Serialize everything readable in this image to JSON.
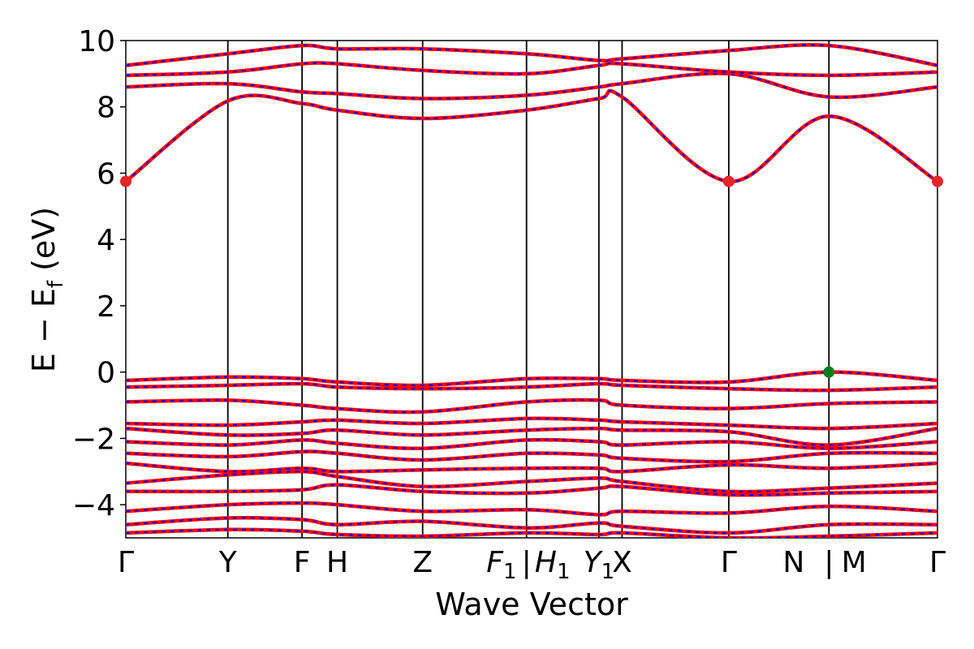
{
  "chart_data": {
    "type": "line",
    "title": "",
    "xlabel": "Wave Vector",
    "ylabel": "E − E",
    "ylabel_sub": "f",
    "ylabel_unit": " (eV)",
    "ylim": [
      -5,
      10
    ],
    "yticks": [
      -4,
      -2,
      0,
      2,
      4,
      6,
      8,
      10
    ],
    "ytick_labels": [
      "−4",
      "−2",
      "0",
      "2",
      "4",
      "6",
      "8",
      "10"
    ],
    "xlim": [
      0,
      8.75
    ],
    "kpoints": [
      {
        "label": "Γ",
        "x": 0,
        "line": false
      },
      {
        "label": "Y",
        "x": 1.1,
        "line": true
      },
      {
        "label": "F",
        "x": 1.9,
        "line": true
      },
      {
        "label": "H",
        "x": 2.28,
        "line": true
      },
      {
        "label": "Z",
        "x": 3.2,
        "line": true
      },
      {
        "label": "F",
        "sub": "1",
        "italic": true,
        "x": 4.05,
        "line": false
      },
      {
        "label": "|",
        "x": 4.32,
        "line": true
      },
      {
        "label": "H",
        "sub": "1",
        "italic": true,
        "x": 4.6,
        "line": false
      },
      {
        "label": "Y",
        "sub": "1",
        "italic": true,
        "x": 5.1,
        "line": true
      },
      {
        "label": "X",
        "x": 5.35,
        "line": true
      },
      {
        "label": "Γ",
        "x": 6.5,
        "line": true
      },
      {
        "label": "N",
        "x": 7.2,
        "line": false
      },
      {
        "label": "|",
        "x": 7.58,
        "line": true
      },
      {
        "label": "M",
        "x": 7.85,
        "line": false
      },
      {
        "label": "Γ",
        "x": 8.75,
        "line": false
      }
    ],
    "series": [
      {
        "style": "red-solid",
        "x": [
          0,
          1.1,
          1.9,
          2.28,
          3.2,
          4.32,
          5.1,
          5.35,
          6.5,
          7.58,
          8.75
        ],
        "values": [
          5.75,
          8.18,
          8.1,
          7.9,
          7.65,
          7.9,
          8.25,
          8.3,
          5.75,
          7.72,
          5.75
        ]
      },
      {
        "style": "red-solid",
        "x": [
          0,
          1.1,
          1.9,
          2.28,
          3.2,
          4.32,
          5.1,
          5.35,
          6.5,
          7.58,
          8.75
        ],
        "values": [
          8.6,
          8.7,
          8.45,
          8.4,
          8.25,
          8.35,
          8.6,
          8.7,
          9.0,
          8.3,
          8.6
        ]
      },
      {
        "style": "red-solid",
        "x": [
          0,
          1.1,
          1.9,
          2.28,
          3.2,
          4.32,
          5.1,
          5.35,
          6.5,
          7.58,
          8.75
        ],
        "values": [
          8.95,
          9.05,
          9.3,
          9.3,
          9.1,
          9.0,
          9.25,
          9.3,
          9.05,
          8.95,
          9.05
        ]
      },
      {
        "style": "red-solid",
        "x": [
          0,
          1.1,
          1.9,
          2.28,
          3.2,
          4.32,
          5.1,
          5.35,
          6.5,
          7.58,
          8.75
        ],
        "values": [
          9.25,
          9.6,
          9.85,
          9.75,
          9.75,
          9.6,
          9.4,
          9.45,
          9.7,
          9.85,
          9.25
        ]
      },
      {
        "style": "red-solid",
        "x": [
          0,
          1.1,
          1.9,
          2.28,
          3.2,
          4.32,
          5.1,
          5.35,
          6.5,
          7.58,
          8.75
        ],
        "values": [
          -0.25,
          -0.15,
          -0.2,
          -0.3,
          -0.4,
          -0.2,
          -0.2,
          -0.25,
          -0.3,
          0.0,
          -0.25
        ]
      },
      {
        "style": "red-solid",
        "x": [
          0,
          1.1,
          1.9,
          2.28,
          3.2,
          4.32,
          5.1,
          5.35,
          6.5,
          7.58,
          8.75
        ],
        "values": [
          -0.45,
          -0.4,
          -0.35,
          -0.45,
          -0.5,
          -0.45,
          -0.35,
          -0.4,
          -0.5,
          -0.55,
          -0.45
        ]
      },
      {
        "style": "red-solid",
        "x": [
          0,
          1.1,
          1.9,
          2.28,
          3.2,
          4.32,
          5.1,
          5.35,
          6.5,
          7.58,
          8.75
        ],
        "values": [
          -0.9,
          -0.85,
          -1.0,
          -1.1,
          -1.2,
          -0.9,
          -0.85,
          -1.0,
          -1.1,
          -0.95,
          -0.9
        ]
      },
      {
        "style": "red-solid",
        "x": [
          0,
          1.1,
          1.9,
          2.28,
          3.2,
          4.32,
          5.1,
          5.35,
          6.5,
          7.58,
          8.75
        ],
        "values": [
          -1.55,
          -1.6,
          -1.5,
          -1.45,
          -1.55,
          -1.4,
          -1.45,
          -1.5,
          -1.6,
          -1.7,
          -1.55
        ]
      },
      {
        "style": "red-solid",
        "x": [
          0,
          1.1,
          1.9,
          2.28,
          3.2,
          4.32,
          5.1,
          5.35,
          6.5,
          7.58,
          8.75
        ],
        "values": [
          -1.7,
          -1.9,
          -1.85,
          -1.75,
          -1.9,
          -1.75,
          -1.7,
          -1.75,
          -1.8,
          -2.2,
          -1.7
        ]
      },
      {
        "style": "red-solid",
        "x": [
          0,
          1.1,
          1.9,
          2.28,
          3.2,
          4.32,
          5.1,
          5.35,
          6.5,
          7.58,
          8.75
        ],
        "values": [
          -2.1,
          -2.2,
          -2.05,
          -2.15,
          -2.3,
          -2.05,
          -2.1,
          -2.2,
          -2.1,
          -2.3,
          -2.1
        ]
      },
      {
        "style": "red-solid",
        "x": [
          0,
          1.1,
          1.9,
          2.28,
          3.2,
          4.32,
          5.1,
          5.35,
          6.5,
          7.58,
          8.75
        ],
        "values": [
          -2.45,
          -2.55,
          -2.4,
          -2.45,
          -2.65,
          -2.45,
          -2.5,
          -2.6,
          -2.7,
          -2.45,
          -2.45
        ]
      },
      {
        "style": "red-solid",
        "x": [
          0,
          1.1,
          1.9,
          2.28,
          3.2,
          4.32,
          5.1,
          5.35,
          6.5,
          7.58,
          8.75
        ],
        "values": [
          -2.75,
          -3.0,
          -2.9,
          -3.0,
          -2.95,
          -2.9,
          -2.9,
          -3.0,
          -2.8,
          -2.9,
          -2.75
        ]
      },
      {
        "style": "red-solid",
        "x": [
          0,
          1.1,
          1.9,
          2.28,
          3.2,
          4.32,
          5.1,
          5.35,
          6.5,
          7.58,
          8.75
        ],
        "values": [
          -3.35,
          -3.1,
          -3.0,
          -3.15,
          -3.45,
          -3.3,
          -3.2,
          -3.3,
          -3.6,
          -3.5,
          -3.35
        ]
      },
      {
        "style": "red-solid",
        "x": [
          0,
          1.1,
          1.9,
          2.28,
          3.2,
          4.32,
          5.1,
          5.35,
          6.5,
          7.58,
          8.75
        ],
        "values": [
          -3.6,
          -3.6,
          -3.55,
          -3.4,
          -3.6,
          -3.65,
          -3.5,
          -3.45,
          -3.7,
          -3.65,
          -3.6
        ]
      },
      {
        "style": "red-solid",
        "x": [
          0,
          1.1,
          1.9,
          2.28,
          3.2,
          4.32,
          5.1,
          5.35,
          6.5,
          7.58,
          8.75
        ],
        "values": [
          -4.2,
          -4.0,
          -3.95,
          -4.0,
          -4.2,
          -4.15,
          -4.3,
          -4.2,
          -4.25,
          -4.05,
          -4.2
        ]
      },
      {
        "style": "red-solid",
        "x": [
          0,
          1.1,
          1.9,
          2.28,
          3.2,
          4.32,
          5.1,
          5.35,
          6.5,
          7.58,
          8.75
        ],
        "values": [
          -4.6,
          -4.4,
          -4.45,
          -4.6,
          -4.5,
          -4.7,
          -4.55,
          -4.65,
          -4.85,
          -4.6,
          -4.6
        ]
      },
      {
        "style": "red-solid",
        "x": [
          0,
          1.1,
          1.9,
          2.28,
          3.2,
          4.32,
          5.1,
          5.35,
          6.5,
          7.58,
          8.75
        ],
        "values": [
          -4.85,
          -4.75,
          -4.8,
          -4.9,
          -4.95,
          -4.85,
          -4.9,
          -4.85,
          -5.0,
          -4.95,
          -4.85
        ]
      }
    ],
    "points": [
      {
        "x": 0,
        "y": 5.75,
        "color": "#e8262a"
      },
      {
        "x": 6.5,
        "y": 5.75,
        "color": "#e8262a"
      },
      {
        "x": 8.75,
        "y": 5.75,
        "color": "#e8262a"
      },
      {
        "x": 7.58,
        "y": 0.0,
        "color": "#0a7d1f"
      }
    ],
    "colors": {
      "primary": "#ff0000",
      "overlay": "#0000ff",
      "vbm": "#0a7d1f",
      "cbm": "#e8262a"
    },
    "grid": false,
    "legend": "none"
  }
}
